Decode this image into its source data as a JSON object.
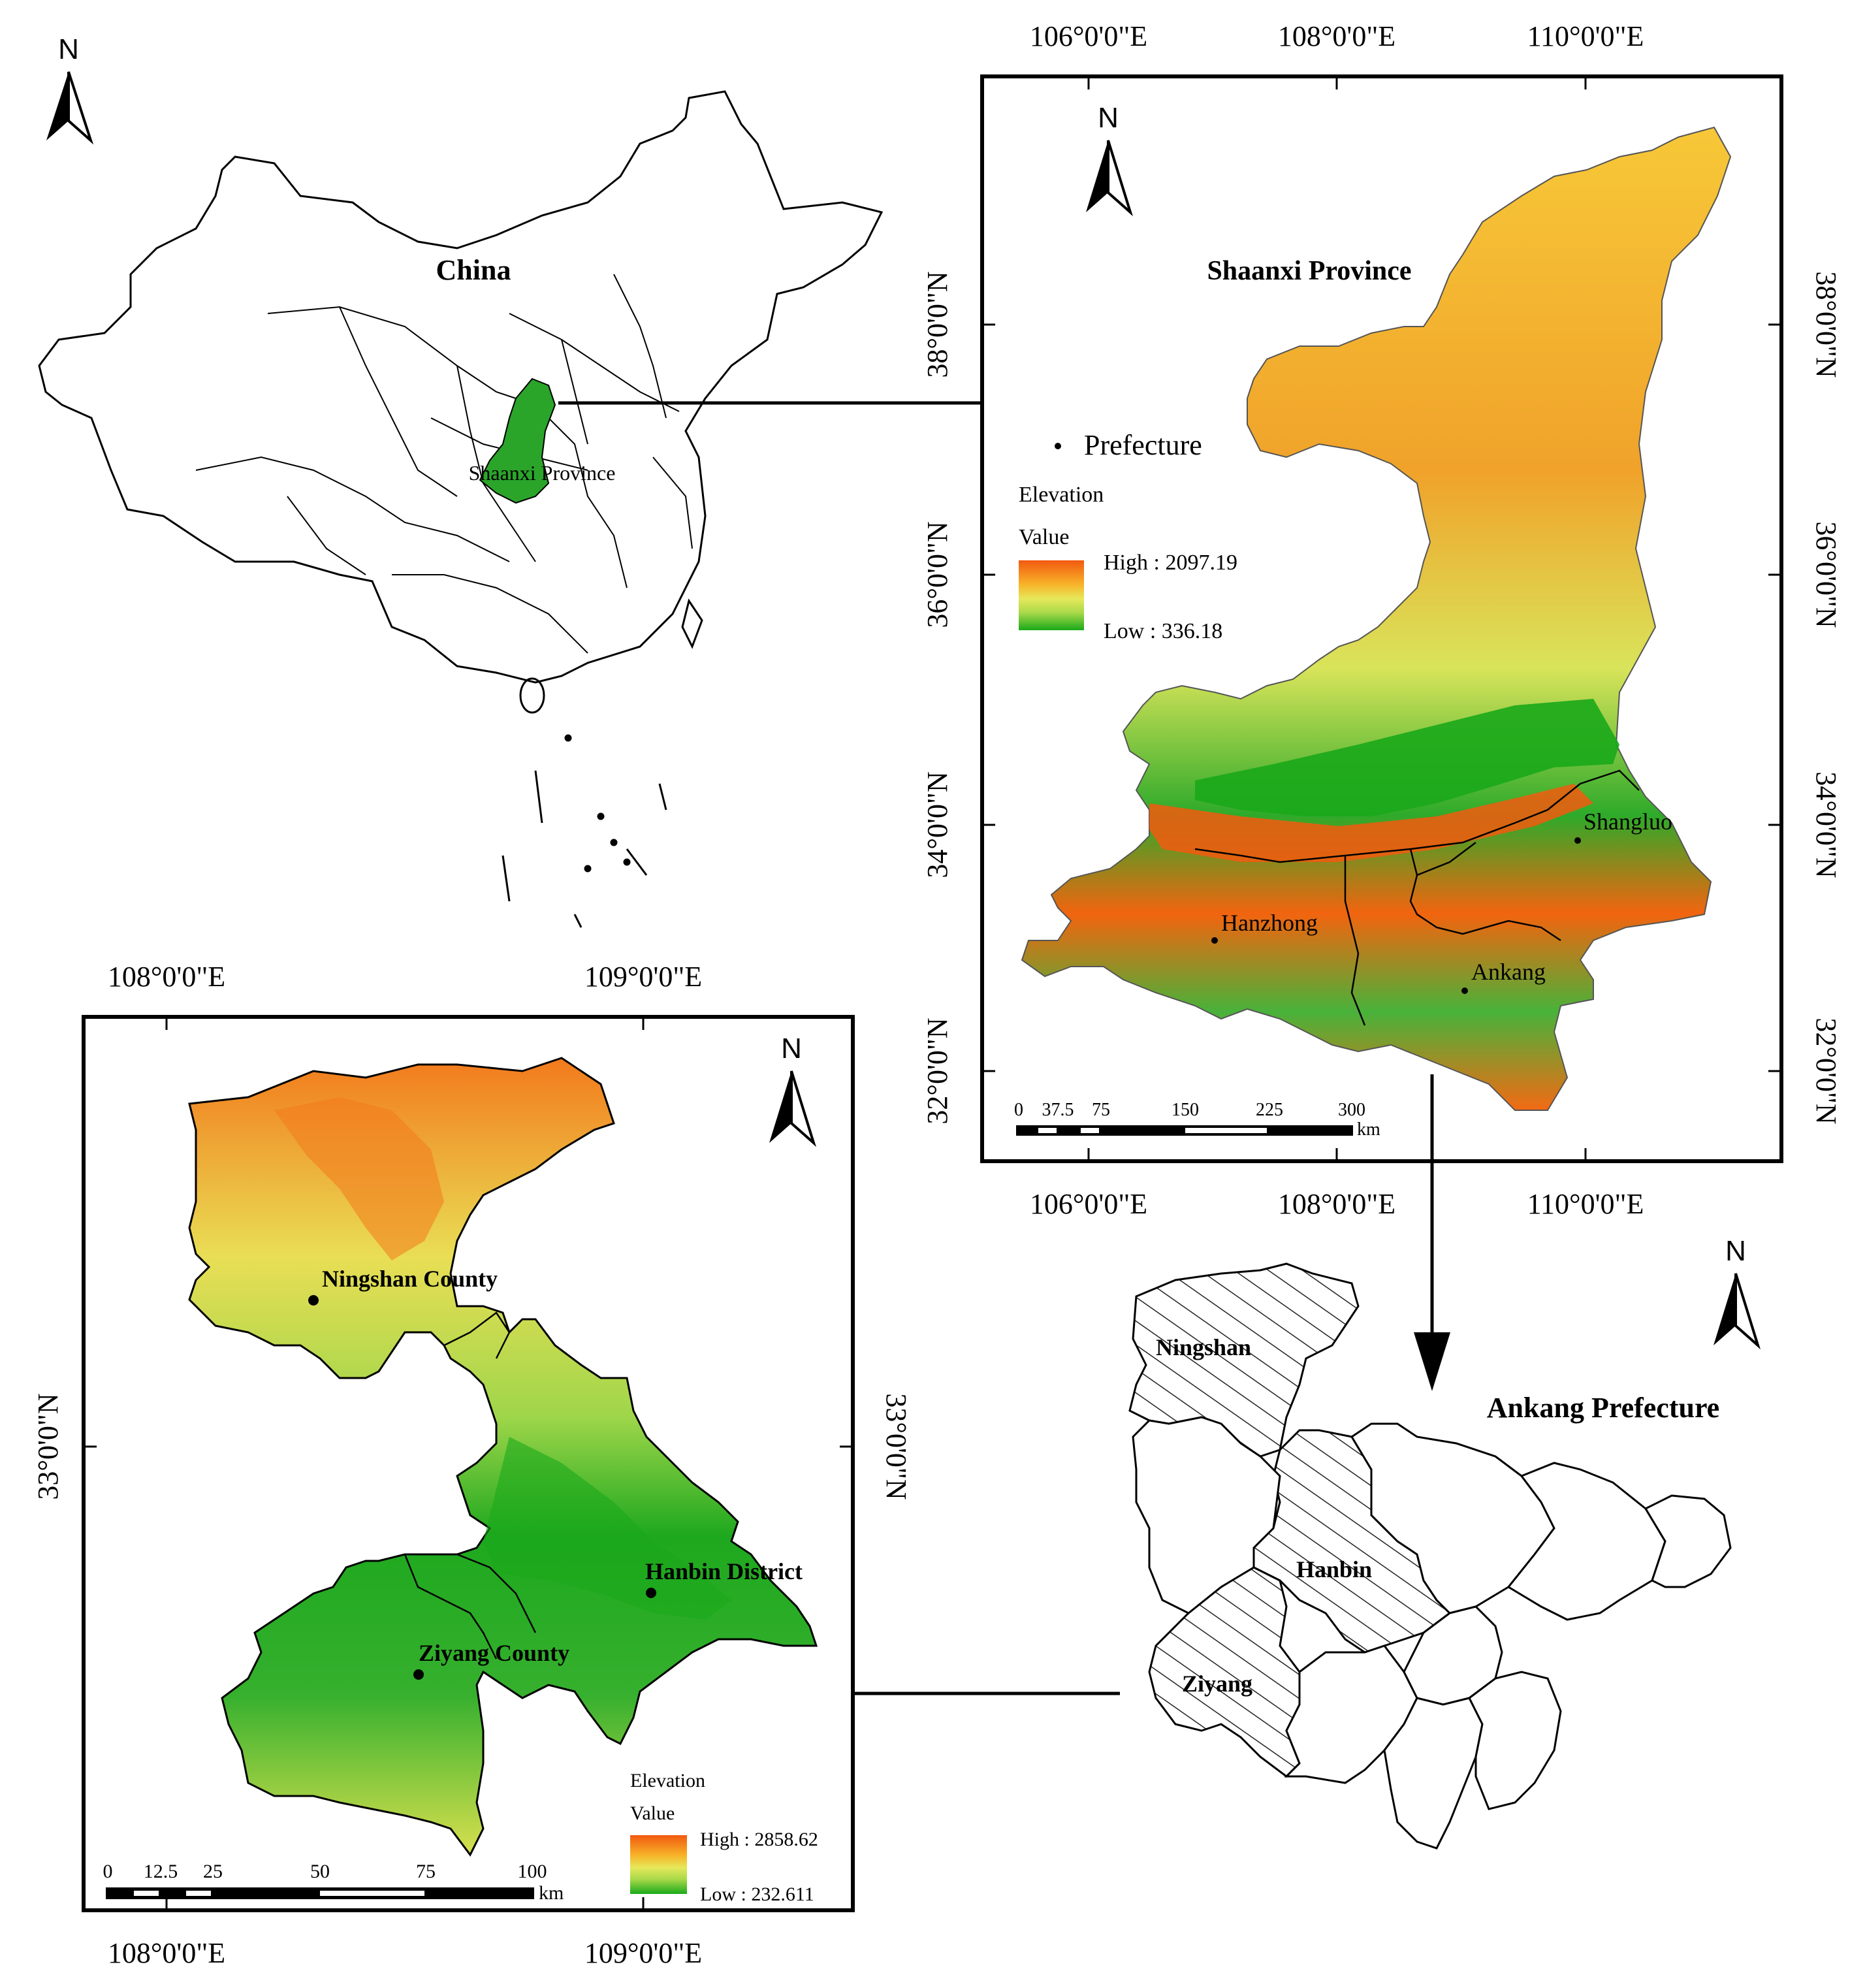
{
  "north_label": "N",
  "china": {
    "title": "China",
    "highlight_label": "Shaanxi Province"
  },
  "shaanxi": {
    "title": "Shaanxi Province",
    "lon_ticks": [
      "106°0'0\"E",
      "108°0'0\"E",
      "110°0'0\"E"
    ],
    "lat_ticks": [
      "38°0'0\"N",
      "36°0'0\"N",
      "34°0'0\"N",
      "32°0'0\"N"
    ],
    "legend": {
      "point_label": "Prefecture",
      "title": "Elevation",
      "subtitle": "Value",
      "high": "High : 2097.19",
      "low": "Low : 336.18"
    },
    "prefectures": [
      "Shangluo",
      "Hanzhong",
      "Ankang"
    ],
    "scalebar": {
      "ticks": [
        "0",
        "37.5",
        "75",
        "150",
        "225",
        "300"
      ],
      "unit": "km"
    }
  },
  "ankang_outline": {
    "title": "Ankang Prefecture",
    "hatched": [
      "Ningshan",
      "Hanbin",
      "Ziyang"
    ]
  },
  "study_area": {
    "lon_ticks": [
      "108°0'0\"E",
      "109°0'0\"E"
    ],
    "lat_ticks": [
      "33°0'0\"N"
    ],
    "places": [
      "Ningshan County",
      "Hanbin District",
      "Ziyang County"
    ],
    "legend": {
      "title": "Elevation",
      "subtitle": "Value",
      "high": "High : 2858.62",
      "low": "Low : 232.611"
    },
    "scalebar": {
      "ticks": [
        "0",
        "12.5",
        "25",
        "50",
        "75",
        "100"
      ],
      "unit": "km"
    }
  },
  "colors": {
    "elev_high": "#f25a0f",
    "elev_mid_high": "#f7b52a",
    "elev_mid": "#e6e85a",
    "elev_mid_low": "#a8d94a",
    "elev_low": "#1aaa1a",
    "shaanxi_fill": "#2aa52a"
  }
}
